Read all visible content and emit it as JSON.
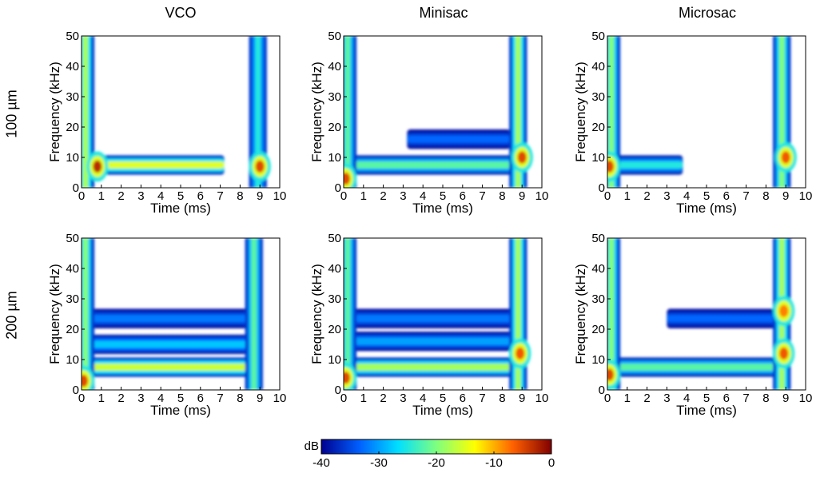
{
  "figure": {
    "columns": [
      "VCO",
      "Minisac",
      "Microsac"
    ],
    "rows": [
      "100 µm",
      "200 µm"
    ]
  },
  "colorbar": {
    "label": "dB",
    "ticks": [
      "-40",
      "-30",
      "-20",
      "-10",
      "0"
    ],
    "range": [
      -40,
      0
    ],
    "colormap": [
      "#00008f",
      "#0060ff",
      "#00dfff",
      "#7fff7f",
      "#ffff00",
      "#ff6000",
      "#800000"
    ]
  },
  "chart_data": [
    {
      "type": "heatmap",
      "panel": "VCO / 100 µm",
      "xlabel": "Time (ms)",
      "ylabel": "Frequency (kHz)",
      "xlim": [
        0,
        10
      ],
      "ylim": [
        0,
        50
      ],
      "xticks": [
        "0",
        "1",
        "2",
        "3",
        "4",
        "5",
        "6",
        "7",
        "8",
        "9",
        "10"
      ],
      "yticks": [
        "0",
        "10",
        "20",
        "30",
        "40",
        "50"
      ],
      "vertical_bands": [
        {
          "t": 0.2,
          "dB": -18
        },
        {
          "t": 8.9,
          "dB": -25
        }
      ],
      "horizontal_bands": [
        {
          "f": 7.5,
          "t_start": 0,
          "t_end": 7.2,
          "dB": -15
        }
      ],
      "hotspots": [
        {
          "t": 0.8,
          "f": 7,
          "dB": -3
        },
        {
          "t": 9.0,
          "f": 7,
          "dB": -5
        }
      ]
    },
    {
      "type": "heatmap",
      "panel": "Minisac / 100 µm",
      "xlabel": "Time (ms)",
      "ylabel": "Frequency (kHz)",
      "xlim": [
        0,
        10
      ],
      "ylim": [
        0,
        50
      ],
      "xticks": [
        "0",
        "1",
        "2",
        "3",
        "4",
        "5",
        "6",
        "7",
        "8",
        "9",
        "10"
      ],
      "yticks": [
        "0",
        "10",
        "20",
        "30",
        "40",
        "50"
      ],
      "vertical_bands": [
        {
          "t": 0.2,
          "dB": -22
        },
        {
          "t": 8.8,
          "dB": -18
        }
      ],
      "horizontal_bands": [
        {
          "f": 7.5,
          "t_start": 0.3,
          "t_end": 8.6,
          "dB": -22
        },
        {
          "f": 16,
          "t_start": 3.2,
          "t_end": 8.4,
          "dB": -33
        }
      ],
      "hotspots": [
        {
          "t": 0.1,
          "f": 3,
          "dB": -5
        },
        {
          "t": 9.0,
          "f": 10,
          "dB": -5
        }
      ]
    },
    {
      "type": "heatmap",
      "panel": "Microsac / 100 µm",
      "xlabel": "Time (ms)",
      "ylabel": "Frequency (kHz)",
      "xlim": [
        0,
        10
      ],
      "ylim": [
        0,
        50
      ],
      "xticks": [
        "0",
        "1",
        "2",
        "3",
        "4",
        "5",
        "6",
        "7",
        "8",
        "9",
        "10"
      ],
      "yticks": [
        "0",
        "10",
        "20",
        "30",
        "40",
        "50"
      ],
      "vertical_bands": [
        {
          "t": 0.2,
          "dB": -20
        },
        {
          "t": 8.8,
          "dB": -20
        }
      ],
      "horizontal_bands": [
        {
          "f": 7.5,
          "t_start": 0.3,
          "t_end": 3.8,
          "dB": -25
        }
      ],
      "hotspots": [
        {
          "t": 0.1,
          "f": 7,
          "dB": -5
        },
        {
          "t": 9.0,
          "f": 10,
          "dB": -6
        }
      ]
    },
    {
      "type": "heatmap",
      "panel": "VCO / 200 µm",
      "xlabel": "Time (ms)",
      "ylabel": "Frequency (kHz)",
      "xlim": [
        0,
        10
      ],
      "ylim": [
        0,
        50
      ],
      "xticks": [
        "0",
        "1",
        "2",
        "3",
        "4",
        "5",
        "6",
        "7",
        "8",
        "9",
        "10"
      ],
      "yticks": [
        "0",
        "10",
        "20",
        "30",
        "40",
        "50"
      ],
      "vertical_bands": [
        {
          "t": 0.2,
          "dB": -20
        },
        {
          "t": 8.7,
          "dB": -22
        }
      ],
      "horizontal_bands": [
        {
          "f": 7.5,
          "t_start": 0.3,
          "t_end": 8.6,
          "dB": -16
        },
        {
          "f": 15,
          "t_start": 0.3,
          "t_end": 8.6,
          "dB": -28
        },
        {
          "f": 23.5,
          "t_start": 0.5,
          "t_end": 8.4,
          "dB": -32
        }
      ],
      "hotspots": [
        {
          "t": 0.1,
          "f": 3,
          "dB": -5
        }
      ]
    },
    {
      "type": "heatmap",
      "panel": "Minisac / 200 µm",
      "xlabel": "Time (ms)",
      "ylabel": "Frequency (kHz)",
      "xlim": [
        0,
        10
      ],
      "ylim": [
        0,
        50
      ],
      "xticks": [
        "0",
        "1",
        "2",
        "3",
        "4",
        "5",
        "6",
        "7",
        "8",
        "9",
        "10"
      ],
      "yticks": [
        "0",
        "10",
        "20",
        "30",
        "40",
        "50"
      ],
      "vertical_bands": [
        {
          "t": 0.2,
          "dB": -22
        },
        {
          "t": 8.8,
          "dB": -18
        }
      ],
      "horizontal_bands": [
        {
          "f": 7.5,
          "t_start": 0.3,
          "t_end": 8.6,
          "dB": -18
        },
        {
          "f": 16,
          "t_start": 0.5,
          "t_end": 8.6,
          "dB": -30
        },
        {
          "f": 23.5,
          "t_start": 0.5,
          "t_end": 8.6,
          "dB": -32
        }
      ],
      "hotspots": [
        {
          "t": 0.1,
          "f": 4,
          "dB": -5
        },
        {
          "t": 8.9,
          "f": 12,
          "dB": -6
        }
      ]
    },
    {
      "type": "heatmap",
      "panel": "Microsac / 200 µm",
      "xlabel": "Time (ms)",
      "ylabel": "Frequency (kHz)",
      "xlim": [
        0,
        10
      ],
      "ylim": [
        0,
        50
      ],
      "xticks": [
        "0",
        "1",
        "2",
        "3",
        "4",
        "5",
        "6",
        "7",
        "8",
        "9",
        "10"
      ],
      "yticks": [
        "0",
        "10",
        "20",
        "30",
        "40",
        "50"
      ],
      "vertical_bands": [
        {
          "t": 0.2,
          "dB": -20
        },
        {
          "t": 8.8,
          "dB": -18
        }
      ],
      "horizontal_bands": [
        {
          "f": 7.5,
          "t_start": 0.3,
          "t_end": 8.6,
          "dB": -22
        },
        {
          "f": 23.5,
          "t_start": 3.0,
          "t_end": 8.6,
          "dB": -33
        }
      ],
      "hotspots": [
        {
          "t": 0.1,
          "f": 5,
          "dB": -5
        },
        {
          "t": 8.9,
          "f": 12,
          "dB": -6
        },
        {
          "t": 8.9,
          "f": 26,
          "dB": -8
        }
      ]
    }
  ]
}
